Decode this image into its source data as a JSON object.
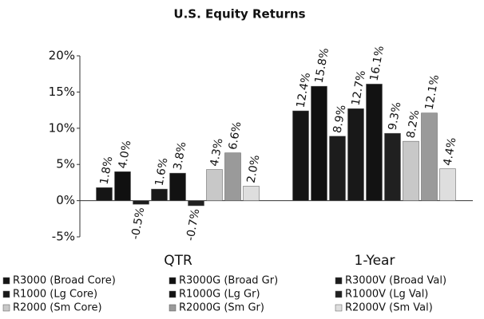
{
  "chart_data": {
    "type": "bar",
    "title": "U.S. Equity Returns",
    "categories": [
      "QTR",
      "1-Year"
    ],
    "series": [
      {
        "name": "R3000 (Broad Core)",
        "color": "#151515",
        "values": [
          1.8,
          12.4
        ],
        "value_labels": [
          "1.8%",
          "12.4%"
        ]
      },
      {
        "name": "R3000G (Broad Gr)",
        "color": "#101010",
        "values": [
          4.0,
          15.8
        ],
        "value_labels": [
          "4.0%",
          "15.8%"
        ]
      },
      {
        "name": "R3000V (Broad Val)",
        "color": "#1c1c1c",
        "values": [
          -0.5,
          8.9
        ],
        "value_labels": [
          "-0.5%",
          "8.9%"
        ]
      },
      {
        "name": "R1000 (Lg Core)",
        "color": "#181818",
        "values": [
          1.6,
          12.7
        ],
        "value_labels": [
          "1.6%",
          "12.7%"
        ]
      },
      {
        "name": "R1000G (Lg Gr)",
        "color": "#121212",
        "values": [
          3.8,
          16.1
        ],
        "value_labels": [
          "3.8%",
          "16.1%"
        ]
      },
      {
        "name": "R1000V (Lg Val)",
        "color": "#202020",
        "values": [
          -0.7,
          9.3
        ],
        "value_labels": [
          "-0.7%",
          "9.3%"
        ]
      },
      {
        "name": "R2000 (Sm Core)",
        "color": "#c8c8c8",
        "values": [
          4.3,
          8.2
        ],
        "value_labels": [
          "4.3%",
          "8.2%"
        ]
      },
      {
        "name": "R2000G (Sm Gr)",
        "color": "#9a9a9a",
        "values": [
          6.6,
          12.1
        ],
        "value_labels": [
          "6.6%",
          "12.1%"
        ]
      },
      {
        "name": "R2000V (Sm Val)",
        "color": "#dedede",
        "values": [
          2.0,
          4.4
        ],
        "value_labels": [
          "2.0%",
          "4.4%"
        ]
      }
    ],
    "ylim": [
      -5,
      20
    ],
    "yticks": [
      {
        "value": -5,
        "label": "-5%"
      },
      {
        "value": 0,
        "label": "0%"
      },
      {
        "value": 5,
        "label": "5%"
      },
      {
        "value": 10,
        "label": "10%"
      },
      {
        "value": 15,
        "label": "15%"
      },
      {
        "value": 20,
        "label": "20%"
      }
    ]
  }
}
